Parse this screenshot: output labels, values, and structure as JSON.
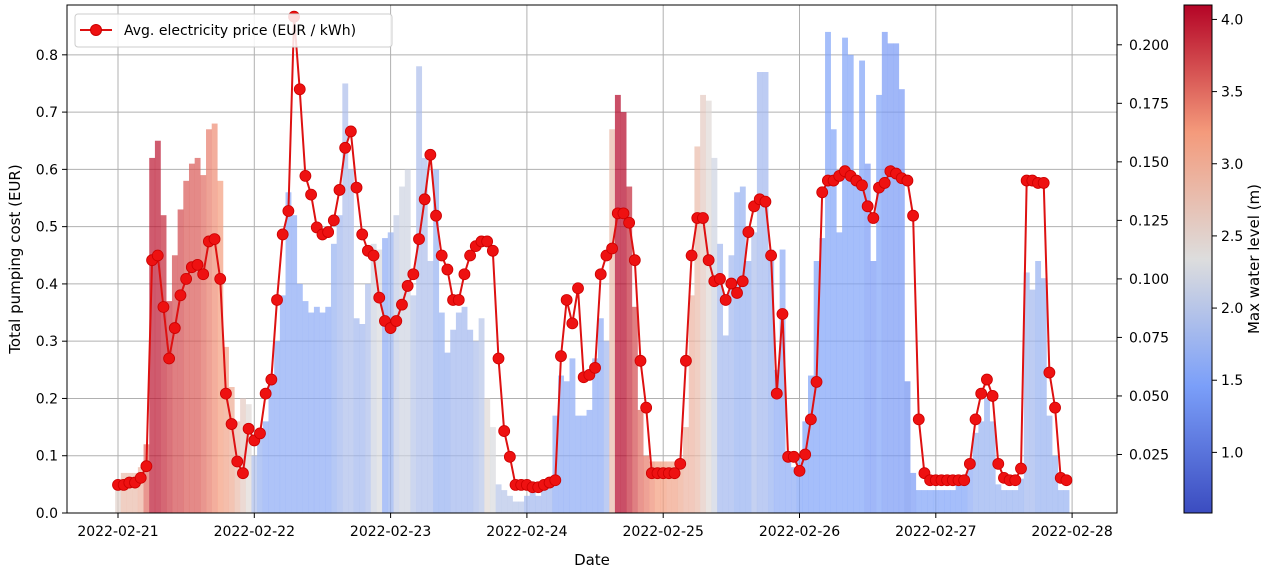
{
  "chart_data": {
    "type": "bar+line",
    "xlabel": "Date",
    "ylabel_left": "Total pumping cost (EUR)",
    "ylabel_right": "",
    "colorbar_label": "Max water level (m)",
    "x_start": "2022-02-21 00:00",
    "x_step": "1 hour",
    "x_ticks": [
      "2022-02-21",
      "2022-02-22",
      "2022-02-23",
      "2022-02-24",
      "2022-02-25",
      "2022-02-26",
      "2022-02-27",
      "2022-02-28"
    ],
    "ylim_left": [
      0,
      0.887
    ],
    "yticks_left": [
      "0.0",
      "0.1",
      "0.2",
      "0.3",
      "0.4",
      "0.5",
      "0.6",
      "0.7",
      "0.8"
    ],
    "ylim_right": [
      0,
      0.217
    ],
    "yticks_right": [
      "0.025",
      "0.050",
      "0.075",
      "0.100",
      "0.125",
      "0.150",
      "0.175",
      "0.200"
    ],
    "colorbar_range": [
      0.58,
      4.1
    ],
    "colorbar_ticks": [
      "1.0",
      "1.5",
      "2.0",
      "2.5",
      "3.0",
      "3.5",
      "4.0"
    ],
    "colormap": "coolwarm",
    "grid": true,
    "legend": {
      "placement": "top-left",
      "entries": [
        "Avg. electricity price (EUR / kWh)"
      ]
    },
    "colors": {
      "line": "#dd1111",
      "left_label": "#2a1fc4"
    },
    "series": [
      {
        "name": "Avg. electricity price (EUR / kWh)",
        "axis": "right",
        "type": "line",
        "values": [
          0.012,
          0.012,
          0.013,
          0.013,
          0.015,
          0.02,
          0.108,
          0.11,
          0.088,
          0.066,
          0.079,
          0.093,
          0.1,
          0.105,
          0.106,
          0.102,
          0.116,
          0.117,
          0.1,
          0.051,
          0.038,
          0.022,
          0.017,
          0.036,
          0.031,
          0.034,
          0.051,
          0.057,
          0.091,
          0.119,
          0.129,
          0.212,
          0.181,
          0.144,
          0.136,
          0.122,
          0.119,
          0.12,
          0.125,
          0.138,
          0.156,
          0.163,
          0.139,
          0.119,
          0.112,
          0.11,
          0.092,
          0.082,
          0.079,
          0.082,
          0.089,
          0.097,
          0.102,
          0.117,
          0.134,
          0.153,
          0.127,
          0.11,
          0.104,
          0.091,
          0.091,
          0.102,
          0.11,
          0.114,
          0.116,
          0.116,
          0.112,
          0.066,
          0.035,
          0.024,
          0.012,
          0.012,
          0.012,
          0.011,
          0.011,
          0.012,
          0.013,
          0.014,
          0.067,
          0.091,
          0.081,
          0.096,
          0.058,
          0.059,
          0.062,
          0.102,
          0.11,
          0.113,
          0.128,
          0.128,
          0.124,
          0.108,
          0.065,
          0.045,
          0.017,
          0.017,
          0.017,
          0.017,
          0.017,
          0.021,
          0.065,
          0.11,
          0.126,
          0.126,
          0.108,
          0.099,
          0.1,
          0.091,
          0.098,
          0.094,
          0.099,
          0.12,
          0.131,
          0.134,
          0.133,
          0.11,
          0.051,
          0.085,
          0.024,
          0.024,
          0.018,
          0.025,
          0.04,
          0.056,
          0.137,
          0.142,
          0.142,
          0.144,
          0.146,
          0.144,
          0.142,
          0.14,
          0.131,
          0.126,
          0.139,
          0.141,
          0.146,
          0.145,
          0.143,
          0.142,
          0.127,
          0.04,
          0.017,
          0.014,
          0.014,
          0.014,
          0.014,
          0.014,
          0.014,
          0.014,
          0.021,
          0.04,
          0.051,
          0.057,
          0.05,
          0.021,
          0.015,
          0.014,
          0.014,
          0.019,
          0.142,
          0.142,
          0.141,
          0.141,
          0.06,
          0.045,
          0.015,
          0.014
        ]
      },
      {
        "name": "Total pumping cost (EUR)",
        "axis": "left",
        "type": "bar",
        "values": [
          0.05,
          0.07,
          0.07,
          0.07,
          0.08,
          0.12,
          0.62,
          0.65,
          0.52,
          0.37,
          0.45,
          0.53,
          0.58,
          0.61,
          0.62,
          0.59,
          0.67,
          0.68,
          0.58,
          0.29,
          0.22,
          0.16,
          0.2,
          0.19,
          0.1,
          0.14,
          0.16,
          0.24,
          0.3,
          0.38,
          0.56,
          0.52,
          0.4,
          0.37,
          0.35,
          0.36,
          0.35,
          0.36,
          0.47,
          0.52,
          0.75,
          0.6,
          0.34,
          0.33,
          0.4,
          0.47,
          0.46,
          0.48,
          0.49,
          0.52,
          0.57,
          0.6,
          0.38,
          0.78,
          0.62,
          0.44,
          0.6,
          0.35,
          0.28,
          0.32,
          0.35,
          0.36,
          0.32,
          0.3,
          0.34,
          0.2,
          0.15,
          0.05,
          0.04,
          0.03,
          0.02,
          0.02,
          0.03,
          0.04,
          0.03,
          0.04,
          0.06,
          0.17,
          0.24,
          0.23,
          0.27,
          0.17,
          0.17,
          0.18,
          0.27,
          0.34,
          0.3,
          0.67,
          0.73,
          0.7,
          0.57,
          0.36,
          0.18,
          0.1,
          0.09,
          0.09,
          0.09,
          0.09,
          0.09,
          0.09,
          0.15,
          0.38,
          0.64,
          0.73,
          0.72,
          0.62,
          0.47,
          0.31,
          0.45,
          0.56,
          0.57,
          0.44,
          0.49,
          0.77,
          0.77,
          0.46,
          0.25,
          0.46,
          0.09,
          0.08,
          0.1,
          0.16,
          0.24,
          0.44,
          0.48,
          0.84,
          0.67,
          0.49,
          0.83,
          0.8,
          0.58,
          0.79,
          0.61,
          0.44,
          0.73,
          0.84,
          0.82,
          0.82,
          0.74,
          0.23,
          0.07,
          0.04,
          0.04,
          0.04,
          0.04,
          0.04,
          0.04,
          0.04,
          0.05,
          0.06,
          0.08,
          0.14,
          0.16,
          0.2,
          0.16,
          0.05,
          0.04,
          0.04,
          0.04,
          0.06,
          0.42,
          0.39,
          0.44,
          0.41,
          0.17,
          0.1,
          0.04,
          0.04
        ]
      },
      {
        "name": "Max water level (m)",
        "axis": "color",
        "type": "bar-color",
        "values": [
          2.5,
          2.8,
          2.8,
          2.8,
          2.9,
          3.5,
          4.0,
          4.0,
          3.9,
          3.8,
          3.7,
          3.7,
          3.6,
          3.6,
          3.6,
          3.5,
          3.4,
          3.3,
          3.2,
          3.1,
          3.0,
          2.8,
          2.6,
          2.4,
          1.9,
          1.7,
          1.6,
          1.6,
          1.6,
          1.6,
          1.6,
          1.6,
          1.6,
          1.6,
          1.6,
          1.6,
          1.6,
          1.6,
          1.7,
          1.8,
          1.9,
          1.9,
          1.8,
          1.8,
          1.9,
          2.2,
          2.3,
          1.6,
          1.7,
          2.1,
          2.2,
          2.2,
          2.0,
          1.9,
          1.9,
          1.9,
          1.7,
          1.7,
          1.7,
          1.8,
          1.8,
          1.8,
          1.8,
          1.9,
          2.0,
          2.4,
          2.3,
          2.0,
          2.0,
          2.0,
          2.0,
          2.0,
          1.8,
          1.8,
          1.8,
          1.8,
          1.8,
          1.6,
          1.6,
          1.6,
          1.6,
          1.6,
          1.6,
          1.6,
          1.6,
          1.6,
          1.8,
          2.8,
          4.1,
          4.1,
          3.9,
          3.7,
          3.5,
          3.4,
          3.3,
          3.2,
          3.2,
          3.1,
          3.1,
          3.0,
          2.9,
          2.9,
          2.8,
          2.6,
          2.4,
          2.2,
          1.8,
          1.8,
          1.8,
          1.7,
          1.7,
          1.7,
          1.9,
          1.8,
          1.8,
          1.7,
          1.6,
          1.6,
          1.6,
          1.6,
          1.5,
          1.5,
          1.5,
          1.5,
          1.5,
          1.5,
          1.5,
          1.5,
          1.5,
          1.5,
          1.5,
          1.5,
          1.4,
          1.4,
          1.5,
          1.4,
          1.4,
          1.4,
          1.4,
          1.3,
          1.4,
          1.5,
          1.5,
          1.5,
          1.5,
          1.5,
          1.5,
          1.5,
          1.5,
          1.5,
          1.6,
          1.7,
          1.7,
          1.7,
          1.7,
          1.7,
          1.7,
          1.7,
          1.7,
          1.7,
          1.8,
          1.8,
          1.7,
          1.7,
          1.7,
          1.7,
          1.7,
          1.7
        ]
      }
    ]
  }
}
